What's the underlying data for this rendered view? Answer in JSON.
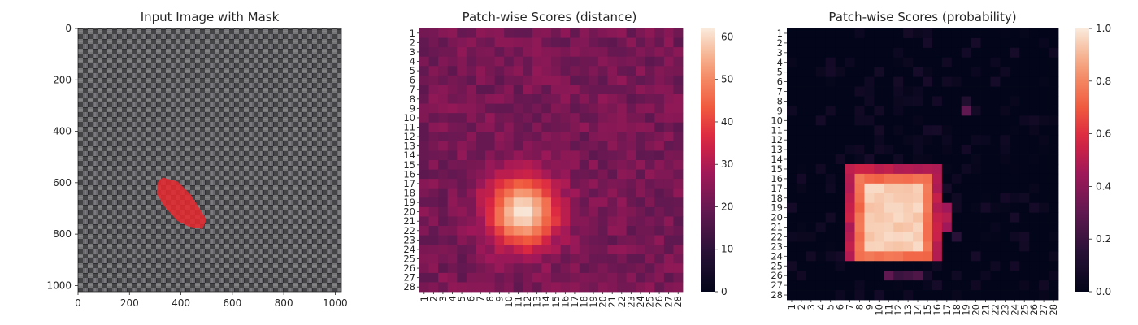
{
  "chart_data": [
    {
      "type": "image",
      "title": "Input Image with Mask",
      "xlabel": "",
      "ylabel": "",
      "xlim": [
        0,
        1024
      ],
      "ylim": [
        1024,
        0
      ],
      "xticks": [
        0,
        200,
        400,
        600,
        800,
        1000
      ],
      "yticks": [
        0,
        200,
        400,
        600,
        800,
        1000
      ],
      "mask_color": "#e8282f",
      "mask_region": [
        [
          330,
          585
        ],
        [
          385,
          600
        ],
        [
          435,
          650
        ],
        [
          495,
          745
        ],
        [
          480,
          775
        ],
        [
          430,
          765
        ],
        [
          390,
          745
        ],
        [
          340,
          690
        ],
        [
          310,
          640
        ],
        [
          315,
          600
        ]
      ]
    },
    {
      "type": "heatmap",
      "title": "Patch-wise Scores (distance)",
      "grid_size": 28,
      "categories": [
        "1",
        "2",
        "3",
        "4",
        "5",
        "6",
        "7",
        "8",
        "9",
        "10",
        "11",
        "12",
        "13",
        "14",
        "15",
        "16",
        "17",
        "18",
        "19",
        "20",
        "21",
        "22",
        "23",
        "24",
        "25",
        "26",
        "27",
        "28"
      ],
      "colorbar": {
        "min": 0,
        "max": 62,
        "ticks": [
          0,
          10,
          20,
          30,
          40,
          50,
          60
        ]
      },
      "colormap": "rocket",
      "background_level": 22,
      "hotspot": {
        "center_row": 20,
        "center_col": 11.5,
        "peak": 62,
        "spread": 2.6
      }
    },
    {
      "type": "heatmap",
      "title": "Patch-wise Scores (probability)",
      "grid_size": 28,
      "categories": [
        "1",
        "2",
        "3",
        "4",
        "5",
        "6",
        "7",
        "8",
        "9",
        "10",
        "11",
        "12",
        "13",
        "14",
        "15",
        "16",
        "17",
        "18",
        "19",
        "20",
        "21",
        "22",
        "23",
        "24",
        "25",
        "26",
        "27",
        "28"
      ],
      "colorbar": {
        "min": 0.0,
        "max": 1.0,
        "ticks": [
          "0.0",
          "0.2",
          "0.4",
          "0.6",
          "0.8",
          "1.0"
        ]
      },
      "colormap": "rocket",
      "hot_block": {
        "rows": [
          15,
          24
        ],
        "cols": [
          7,
          16
        ]
      },
      "core_block": {
        "rows": [
          17,
          23
        ],
        "cols": [
          9,
          14
        ],
        "value": 0.97
      },
      "speckles": [
        {
          "row": 9,
          "col": 19,
          "value": 0.3
        },
        {
          "row": 8,
          "col": 19,
          "value": 0.12
        },
        {
          "row": 19,
          "col": 17,
          "value": 0.45
        },
        {
          "row": 20,
          "col": 17,
          "value": 0.5
        },
        {
          "row": 21,
          "col": 17,
          "value": 0.45
        },
        {
          "row": 22,
          "col": 18,
          "value": 0.15
        },
        {
          "row": 26,
          "col": 11,
          "value": 0.3
        },
        {
          "row": 26,
          "col": 12,
          "value": 0.2
        },
        {
          "row": 26,
          "col": 13,
          "value": 0.22
        },
        {
          "row": 26,
          "col": 14,
          "value": 0.25
        }
      ]
    }
  ]
}
